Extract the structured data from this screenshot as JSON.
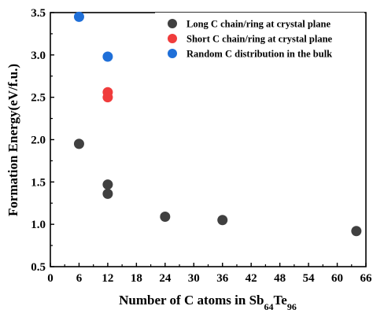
{
  "chart_data": {
    "type": "scatter",
    "title": "",
    "xlabel": {
      "text": "Number of C atoms in Sb",
      "sub1": "64",
      "mid": "Te",
      "sub2": "96"
    },
    "ylabel": "Formation Energy(eV/f.u.)",
    "xlim": [
      0,
      66
    ],
    "ylim": [
      0.5,
      3.5
    ],
    "xticks": [
      0,
      6,
      12,
      18,
      24,
      30,
      36,
      42,
      48,
      54,
      60,
      66
    ],
    "yticks": [
      0.5,
      1.0,
      1.5,
      2.0,
      2.5,
      3.0,
      3.5
    ],
    "ytick_labels": [
      "0.5",
      "1.0",
      "1.5",
      "2.0",
      "2.5",
      "3.0",
      "3.5"
    ],
    "grid": false,
    "legend_position": "top-right",
    "series": [
      {
        "name": "Long C chain/ring at crystal plane",
        "color": "#404040",
        "points": [
          [
            6,
            1.95
          ],
          [
            12,
            1.47
          ],
          [
            12,
            1.36
          ],
          [
            24,
            1.09
          ],
          [
            36,
            1.05
          ],
          [
            64,
            0.92
          ]
        ]
      },
      {
        "name": "Short C chain/ring at crystal plane",
        "color": "#f03c3c",
        "points": [
          [
            12,
            2.56
          ],
          [
            12,
            2.5
          ]
        ]
      },
      {
        "name": "Random C distribution in the bulk",
        "color": "#1f6fd8",
        "points": [
          [
            6,
            3.45
          ],
          [
            12,
            2.98
          ]
        ]
      }
    ]
  }
}
